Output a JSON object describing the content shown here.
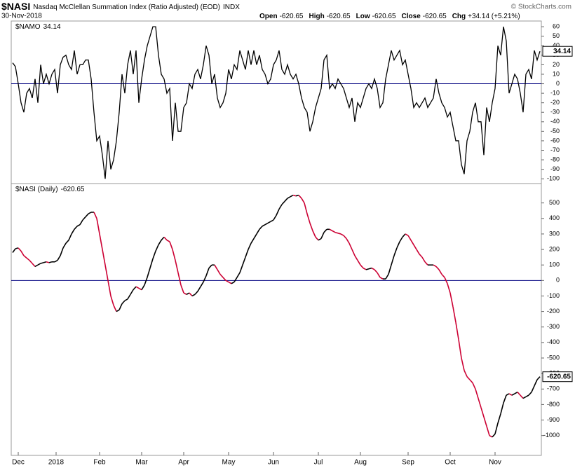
{
  "header": {
    "symbol": "$NASI",
    "name": "Nasdaq McClellan Summation Index (Ratio Adjusted) (EOD)",
    "exchange": "INDX",
    "date": "30-Nov-2018",
    "quote": [
      {
        "label": "Open",
        "value": "-620.65"
      },
      {
        "label": "High",
        "value": "-620.65"
      },
      {
        "label": "Low",
        "value": "-620.65"
      },
      {
        "label": "Close",
        "value": "-620.65"
      },
      {
        "label": "Chg",
        "value": "+34.14 (+5.21%)"
      }
    ],
    "watermark": "© StockCharts.com"
  },
  "chart_data": [
    {
      "type": "line",
      "xlim": [
        0,
        188
      ],
      "ylim": [
        -105,
        66
      ],
      "yticks": [
        60,
        50,
        40,
        30,
        20,
        10,
        0,
        -10,
        -20,
        -30,
        -40,
        -50,
        -60,
        -70,
        -80,
        -90,
        -100
      ],
      "zero_line_color": "#000080",
      "series": [
        {
          "name": "$NAMO",
          "color": "#000000",
          "values": [
            22,
            18,
            0,
            -20,
            -30,
            -10,
            -5,
            -15,
            5,
            -20,
            20,
            0,
            10,
            0,
            10,
            15,
            -10,
            20,
            28,
            30,
            20,
            15,
            35,
            10,
            20,
            20,
            25,
            25,
            5,
            -30,
            -60,
            -55,
            -75,
            -100,
            -60,
            -90,
            -80,
            -60,
            -30,
            10,
            -10,
            20,
            35,
            10,
            35,
            -20,
            5,
            25,
            40,
            50,
            60,
            60,
            30,
            10,
            5,
            -10,
            -5,
            -60,
            -20,
            -50,
            -50,
            -25,
            -20,
            0,
            -5,
            10,
            15,
            5,
            20,
            40,
            30,
            0,
            10,
            -15,
            -25,
            -20,
            -10,
            15,
            5,
            20,
            15,
            35,
            25,
            15,
            35,
            20,
            35,
            20,
            30,
            15,
            10,
            0,
            5,
            20,
            25,
            35,
            15,
            10,
            20,
            10,
            5,
            10,
            0,
            -15,
            -25,
            -30,
            -50,
            -40,
            -25,
            -15,
            -5,
            25,
            30,
            -5,
            0,
            -5,
            5,
            0,
            -5,
            -15,
            -25,
            -15,
            -40,
            -20,
            -25,
            -15,
            -5,
            0,
            -5,
            5,
            -5,
            -25,
            -20,
            5,
            20,
            35,
            25,
            30,
            35,
            20,
            25,
            10,
            -5,
            -25,
            -20,
            -25,
            -20,
            -15,
            -25,
            -20,
            -15,
            5,
            -10,
            -20,
            -25,
            -35,
            -30,
            -45,
            -60,
            -60,
            -85,
            -95,
            -60,
            -50,
            -30,
            -20,
            -40,
            -40,
            -75,
            -25,
            -40,
            -20,
            -5,
            40,
            30,
            60,
            45,
            -10,
            0,
            10,
            5,
            -10,
            -30,
            10,
            15,
            5,
            35,
            25,
            34.14
          ]
        }
      ]
    },
    {
      "type": "line",
      "xlim": [
        0,
        188
      ],
      "ylim": [
        -1128,
        625
      ],
      "yticks": [
        500,
        400,
        300,
        200,
        100,
        0,
        -100,
        -200,
        -300,
        -400,
        -500,
        -600,
        -700,
        -800,
        -900,
        -1000
      ],
      "zero_line_color": "#000080",
      "xticks": [
        {
          "value": 2,
          "label": "Dec"
        },
        {
          "value": 15.5,
          "label": "2018"
        },
        {
          "value": 31,
          "label": "Feb"
        },
        {
          "value": 46,
          "label": "Mar"
        },
        {
          "value": 61,
          "label": "Apr"
        },
        {
          "value": 77,
          "label": "May"
        },
        {
          "value": 93,
          "label": "Jun"
        },
        {
          "value": 109,
          "label": "Jul"
        },
        {
          "value": 124,
          "label": "Aug"
        },
        {
          "value": 141,
          "label": "Sep"
        },
        {
          "value": 156,
          "label": "Oct"
        },
        {
          "value": 172,
          "label": "Nov"
        }
      ],
      "series": [
        {
          "name": "$NASI (Daily)",
          "color": "#000000",
          "down_color": "#cc0033",
          "values": [
            180,
            205,
            210,
            190,
            160,
            145,
            130,
            110,
            90,
            100,
            110,
            115,
            120,
            115,
            120,
            120,
            130,
            160,
            210,
            240,
            260,
            300,
            330,
            350,
            360,
            390,
            410,
            430,
            440,
            440,
            400,
            300,
            200,
            100,
            0,
            -100,
            -160,
            -200,
            -190,
            -150,
            -130,
            -120,
            -90,
            -60,
            -40,
            -50,
            -60,
            -30,
            20,
            80,
            140,
            190,
            230,
            260,
            280,
            260,
            250,
            200,
            130,
            50,
            -30,
            -80,
            -90,
            -80,
            -100,
            -90,
            -70,
            -40,
            -10,
            30,
            80,
            100,
            100,
            70,
            40,
            20,
            0,
            -10,
            -20,
            -10,
            20,
            50,
            100,
            150,
            200,
            240,
            270,
            300,
            330,
            350,
            360,
            370,
            380,
            390,
            420,
            460,
            490,
            510,
            530,
            540,
            550,
            545,
            550,
            530,
            500,
            430,
            370,
            320,
            280,
            260,
            270,
            310,
            330,
            330,
            320,
            310,
            305,
            300,
            290,
            270,
            240,
            200,
            160,
            130,
            100,
            80,
            70,
            75,
            80,
            70,
            50,
            20,
            10,
            10,
            40,
            100,
            160,
            210,
            250,
            280,
            300,
            290,
            260,
            230,
            200,
            170,
            150,
            120,
            100,
            100,
            100,
            90,
            70,
            40,
            20,
            -20,
            -80,
            -170,
            -270,
            -380,
            -500,
            -580,
            -620,
            -640,
            -660,
            -700,
            -760,
            -820,
            -880,
            -940,
            -1000,
            -1010,
            -990,
            -920,
            -860,
            -790,
            -740,
            -730,
            -740,
            -730,
            -720,
            -740,
            -760,
            -750,
            -740,
            -720,
            -680,
            -640,
            -620.65
          ]
        }
      ]
    }
  ]
}
